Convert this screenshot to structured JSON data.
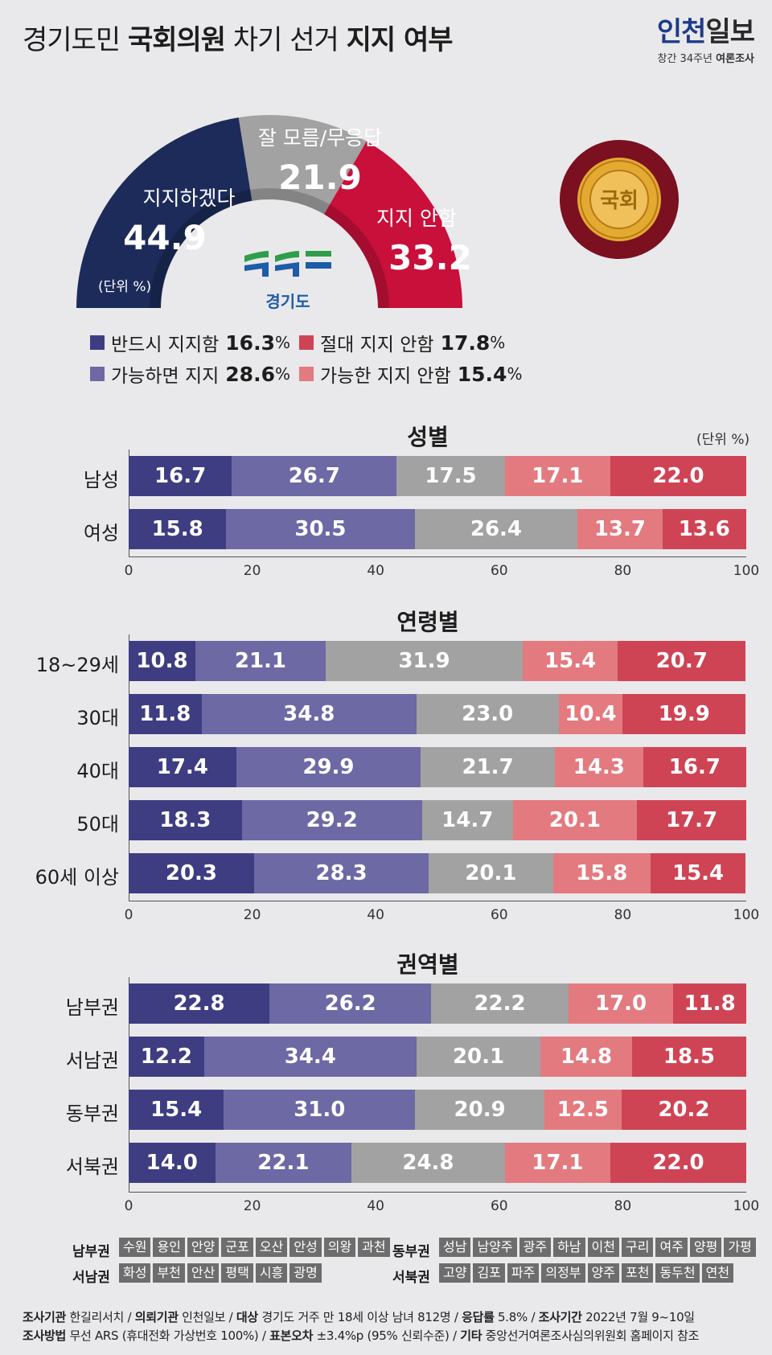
{
  "title": {
    "part1": "경기도민 ",
    "part2": "국회의원",
    "part3": " 차기 선거 ",
    "part4": "지지 여부"
  },
  "logo": {
    "name_a": "인천",
    "name_b": "일보",
    "sub_prefix": "창간 34주년 ",
    "sub_bold": "여론조사"
  },
  "donut": {
    "unit": "(단위 %)",
    "center_logo_text": "경기도",
    "emblem_text": "국회",
    "segments": [
      {
        "label": "지지하겠다",
        "value": 44.9,
        "color": "#1c2b5a"
      },
      {
        "label": "잘 모름/무응답",
        "value": 21.9,
        "color": "#a2a2a2"
      },
      {
        "label": "지지 안함",
        "value": 33.2,
        "color": "#c8103a"
      }
    ]
  },
  "legend": [
    {
      "label": "반드시 지지함",
      "value": "16.3",
      "unit": "%",
      "color": "#3e3d82"
    },
    {
      "label": "절대 지지 안함",
      "value": "17.8",
      "unit": "%",
      "color": "#cf4455"
    },
    {
      "label": "가능하면 지지",
      "value": "28.6",
      "unit": "%",
      "color": "#6c69a5"
    },
    {
      "label": "가능한 지지 안함",
      "value": "15.4",
      "unit": "%",
      "color": "#e37a7f"
    }
  ],
  "colors": [
    "#3e3d82",
    "#6c69a5",
    "#a2a2a2",
    "#e37a7f",
    "#cf4455"
  ],
  "chart_data": [
    {
      "type": "bar",
      "stacked": true,
      "orientation": "horizontal",
      "title": "성별",
      "unit": "(단위 %)",
      "categories": [
        "남성",
        "여성"
      ],
      "rows": [
        [
          16.7,
          26.7,
          17.5,
          17.1,
          22.0
        ],
        [
          15.8,
          30.5,
          26.4,
          13.7,
          13.6
        ]
      ],
      "xlim": [
        0,
        100
      ],
      "ticks": [
        "0",
        "20",
        "40",
        "60",
        "80",
        "100"
      ]
    },
    {
      "type": "bar",
      "stacked": true,
      "orientation": "horizontal",
      "title": "연령별",
      "categories": [
        "18~29세",
        "30대",
        "40대",
        "50대",
        "60세 이상"
      ],
      "rows": [
        [
          10.8,
          21.1,
          31.9,
          15.4,
          20.7
        ],
        [
          11.8,
          34.8,
          23.0,
          10.4,
          19.9
        ],
        [
          17.4,
          29.9,
          21.7,
          14.3,
          16.7
        ],
        [
          18.3,
          29.2,
          14.7,
          20.1,
          17.7
        ],
        [
          20.3,
          28.3,
          20.1,
          15.8,
          15.4
        ]
      ],
      "xlim": [
        0,
        100
      ],
      "ticks": [
        "0",
        "20",
        "40",
        "60",
        "80",
        "100"
      ]
    },
    {
      "type": "bar",
      "stacked": true,
      "orientation": "horizontal",
      "title": "권역별",
      "categories": [
        "남부권",
        "서남권",
        "동부권",
        "서북권"
      ],
      "rows": [
        [
          22.8,
          26.2,
          22.2,
          17.0,
          11.8
        ],
        [
          12.2,
          34.4,
          20.1,
          14.8,
          18.5
        ],
        [
          15.4,
          31.0,
          20.9,
          12.5,
          20.2
        ],
        [
          14.0,
          22.1,
          24.8,
          17.1,
          22.0
        ]
      ],
      "xlim": [
        0,
        100
      ],
      "ticks": [
        "0",
        "20",
        "40",
        "60",
        "80",
        "100"
      ]
    }
  ],
  "regions": [
    {
      "name": "남부권",
      "cities": [
        "수원",
        "용인",
        "안양",
        "군포",
        "오산",
        "안성",
        "의왕",
        "과천"
      ]
    },
    {
      "name": "동부권",
      "cities": [
        "성남",
        "남양주",
        "광주",
        "하남",
        "이천",
        "구리",
        "여주",
        "양평",
        "가평"
      ]
    },
    {
      "name": "서남권",
      "cities": [
        "화성",
        "부천",
        "안산",
        "평택",
        "시흥",
        "광명"
      ]
    },
    {
      "name": "서북권",
      "cities": [
        "고양",
        "김포",
        "파주",
        "의정부",
        "양주",
        "포천",
        "동두천",
        "연천"
      ]
    }
  ],
  "footer": {
    "line1": [
      {
        "k": "조사기관",
        "v": " 한길리서치 / "
      },
      {
        "k": "의뢰기관",
        "v": " 인천일보 / "
      },
      {
        "k": "대상",
        "v": " 경기도 거주 만 18세 이상 남녀 812명 / "
      },
      {
        "k": "응답률",
        "v": " 5.8% / "
      },
      {
        "k": "조사기간",
        "v": " 2022년 7월 9~10일"
      }
    ],
    "line2": [
      {
        "k": "조사방법",
        "v": " 무선 ARS (휴대전화 가상번호 100%) / "
      },
      {
        "k": "표본오차",
        "v": " ±3.4%p (95% 신뢰수준) / "
      },
      {
        "k": "기타",
        "v": " 중앙선거여론조사심의위원회 홈페이지 참조"
      }
    ]
  }
}
